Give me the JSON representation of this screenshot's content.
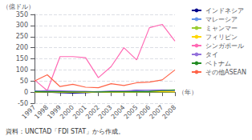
{
  "chart_data": {
    "type": "line",
    "ylabel": "（億ドル）",
    "xlabel": "（年）",
    "annotations": [
      "資料：UNCTAD「FDI STAT」から作成。"
    ],
    "categories": [
      "1997",
      "1998",
      "1999",
      "2000",
      "2001",
      "2002",
      "2003",
      "2004",
      "2005",
      "2006",
      "2007",
      "2008"
    ],
    "series": [
      {
        "name": "インドネシア",
        "color": "#00008B",
        "values": [
          4,
          -0.4,
          -3,
          -4.5,
          -3,
          1,
          -1,
          1.5,
          8,
          5.5,
          6.9,
          9.3
        ]
      },
      {
        "name": "マレーシア",
        "color": "#6495ED",
        "values": [
          6,
          3,
          3.5,
          3.8,
          0.6,
          3.2,
          2.5,
          4.6,
          4,
          6.1,
          8.5,
          7.2
        ]
      },
      {
        "name": "ミャンマー",
        "color": "#9ACD32",
        "values": [
          0.9,
          0.7,
          0.3,
          0.2,
          0.2,
          0.2,
          0.3,
          0.3,
          0.2,
          0.4,
          0.7,
          0.7
        ]
      },
      {
        "name": "フィリピン",
        "color": "#FFD700",
        "values": [
          1.3,
          1.7,
          0.6,
          1.3,
          0.2,
          1.0,
          0.5,
          0.7,
          1.8,
          2.9,
          2.9,
          1.5
        ]
      },
      {
        "name": "シンガポール",
        "color": "#FF69B4",
        "values": [
          55,
          7,
          160,
          160,
          155,
          65,
          115,
          200,
          145,
          290,
          305,
          230
        ]
      },
      {
        "name": "タイ",
        "color": "#9370DB",
        "values": [
          3.7,
          7.5,
          6.1,
          3.4,
          3.8,
          0.9,
          5.2,
          5.1,
          8.1,
          9.5,
          9.6,
          8.0
        ]
      },
      {
        "name": "ベトナム",
        "color": "#228B22",
        "values": [
          2.6,
          1.7,
          1.5,
          1.3,
          1.3,
          1.2,
          1.5,
          1.6,
          2.0,
          2.4,
          6.7,
          9.6
        ]
      },
      {
        "name": "その他ASEAN",
        "color": "#FF6347",
        "values": [
          50,
          78,
          25,
          35,
          22,
          20,
          38,
          30,
          42,
          45,
          55,
          100
        ]
      }
    ],
    "ylim": [
      -50,
      350
    ],
    "yticks": [
      -50,
      0,
      50,
      100,
      150,
      200,
      250,
      300,
      350
    ],
    "grid": true,
    "legend": "right"
  }
}
